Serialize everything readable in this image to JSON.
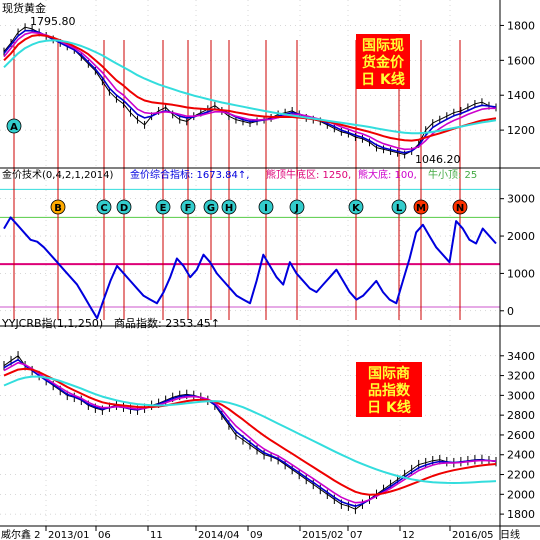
{
  "colors": {
    "background": "#ffffff",
    "axis": "#000000",
    "grid": "#b0b0b0",
    "candles": "#000000",
    "ma_short": "#0000cc",
    "ma_mid": "#cc00cc",
    "ma_long": "#ee0000",
    "ma_longest": "#33dddd",
    "index_line": "#0000dd",
    "level_top": "#33dddd",
    "level_mid": "#55cc44",
    "level_main": "#dd0077",
    "level_bottom": "#cc55cc",
    "event_line": "#cc0000",
    "badge_red": "#ff0000",
    "badge_yellow": "#ffff33",
    "marker_fill_cyan": "#33cccc",
    "marker_fill_orange": "#ffaa00",
    "marker_fill_red": "#ff3300"
  },
  "chart_data": [
    {
      "type": "line",
      "panel": "gold",
      "title": "现货黄金",
      "badge": [
        "国际现",
        "货金价",
        "日 K线"
      ],
      "annotations": {
        "high": "1795.80",
        "low": "1046.20"
      },
      "ylim": [
        1000,
        1900
      ],
      "y_ticks": [
        "1800",
        "1600",
        "1400",
        "1200"
      ],
      "y_tick_values": [
        1800,
        1600,
        1400,
        1200
      ],
      "markers": [
        "A"
      ],
      "series": [
        {
          "values": [
            1650,
            1700,
            1760,
            1790,
            1780,
            1760,
            1740,
            1720,
            1700,
            1680,
            1660,
            1620,
            1580,
            1540,
            1480,
            1420,
            1380,
            1350,
            1300,
            1260,
            1230,
            1280,
            1310,
            1330,
            1290,
            1260,
            1250,
            1280,
            1300,
            1320,
            1340,
            1310,
            1280,
            1260,
            1250,
            1240,
            1250,
            1260,
            1270,
            1290,
            1300,
            1310,
            1290,
            1270,
            1260,
            1250,
            1230,
            1210,
            1190,
            1180,
            1160,
            1150,
            1130,
            1100,
            1090,
            1080,
            1070,
            1060,
            1080,
            1120,
            1200,
            1240,
            1260,
            1280,
            1300,
            1310,
            1330,
            1350,
            1360,
            1340,
            1330
          ]
        },
        {
          "values": [
            1640,
            1690,
            1740,
            1770,
            1770,
            1760,
            1740,
            1720,
            1700,
            1680,
            1660,
            1630,
            1590,
            1550,
            1500,
            1440,
            1400,
            1370,
            1330,
            1290,
            1270,
            1280,
            1300,
            1310,
            1300,
            1280,
            1270,
            1275,
            1290,
            1305,
            1320,
            1315,
            1295,
            1275,
            1260,
            1250,
            1252,
            1258,
            1265,
            1280,
            1292,
            1300,
            1292,
            1278,
            1265,
            1255,
            1238,
            1220,
            1200,
            1186,
            1170,
            1158,
            1140,
            1115,
            1098,
            1088,
            1078,
            1070,
            1080,
            1110,
            1170,
            1215,
            1240,
            1262,
            1282,
            1295,
            1312,
            1330,
            1342,
            1338,
            1332
          ]
        },
        {
          "values": [
            1620,
            1670,
            1720,
            1750,
            1760,
            1755,
            1745,
            1730,
            1710,
            1690,
            1670,
            1645,
            1610,
            1570,
            1530,
            1480,
            1430,
            1400,
            1360,
            1320,
            1300,
            1295,
            1300,
            1305,
            1300,
            1290,
            1280,
            1280,
            1285,
            1295,
            1305,
            1305,
            1295,
            1280,
            1270,
            1260,
            1258,
            1260,
            1262,
            1272,
            1282,
            1290,
            1290,
            1282,
            1272,
            1262,
            1250,
            1235,
            1218,
            1205,
            1190,
            1178,
            1162,
            1140,
            1122,
            1110,
            1098,
            1090,
            1092,
            1105,
            1140,
            1180,
            1210,
            1235,
            1255,
            1272,
            1290,
            1305,
            1320,
            1325,
            1325
          ]
        },
        {
          "values": [
            1600,
            1640,
            1690,
            1720,
            1740,
            1745,
            1740,
            1730,
            1715,
            1700,
            1680,
            1660,
            1635,
            1600,
            1565,
            1525,
            1485,
            1455,
            1420,
            1390,
            1370,
            1360,
            1355,
            1350,
            1345,
            1338,
            1330,
            1325,
            1322,
            1320,
            1318,
            1315,
            1310,
            1302,
            1295,
            1288,
            1282,
            1278,
            1276,
            1275,
            1275,
            1275,
            1272,
            1268,
            1262,
            1255,
            1248,
            1240,
            1230,
            1220,
            1210,
            1200,
            1190,
            1178,
            1165,
            1155,
            1148,
            1142,
            1140,
            1145,
            1158,
            1170,
            1182,
            1195,
            1208,
            1220,
            1232,
            1244,
            1255,
            1262,
            1268
          ]
        },
        {
          "values": [
            1560,
            1600,
            1640,
            1670,
            1690,
            1705,
            1712,
            1715,
            1712,
            1705,
            1695,
            1682,
            1666,
            1648,
            1628,
            1605,
            1582,
            1560,
            1538,
            1515,
            1495,
            1478,
            1462,
            1448,
            1435,
            1422,
            1410,
            1398,
            1388,
            1378,
            1368,
            1358,
            1350,
            1342,
            1334,
            1326,
            1318,
            1310,
            1303,
            1296,
            1290,
            1284,
            1278,
            1272,
            1266,
            1260,
            1254,
            1248,
            1242,
            1236,
            1230,
            1224,
            1218,
            1210,
            1203,
            1196,
            1190,
            1185,
            1182,
            1182,
            1185,
            1190,
            1196,
            1204,
            1212,
            1220,
            1228,
            1236,
            1244,
            1250,
            1256
          ]
        }
      ]
    },
    {
      "type": "line",
      "panel": "gold_technical",
      "title": "金价技术(0,4,2,1,2014)",
      "legend": [
        {
          "label": "金价综合指标:",
          "value": "1673.84",
          "color": "#0000dd"
        },
        {
          "label": "熊顶牛底区:",
          "value": "1250",
          "color": "#dd0077"
        },
        {
          "label": "熊大底:",
          "value": "100",
          "color": "#cc00cc"
        },
        {
          "label": "牛小顶:",
          "value": "25",
          "color": "#44aa44"
        }
      ],
      "arrow": "↑",
      "ylim": [
        -300,
        3500
      ],
      "y_ticks": [
        "3000",
        "2000",
        "1000",
        "0"
      ],
      "y_tick_values": [
        3000,
        2000,
        1000,
        0
      ],
      "levels": [
        3250,
        2500,
        1250,
        100
      ],
      "markers": [
        "B",
        "C",
        "D",
        "E",
        "F",
        "G",
        "H",
        "I",
        "J",
        "K",
        "L",
        "M",
        "N"
      ],
      "series": [
        {
          "values": [
            2200,
            2500,
            2300,
            2100,
            1900,
            1850,
            1700,
            1500,
            1300,
            1100,
            900,
            700,
            400,
            100,
            -200,
            300,
            800,
            1200,
            1000,
            800,
            600,
            400,
            300,
            200,
            500,
            900,
            1400,
            1200,
            900,
            1100,
            1500,
            1300,
            1000,
            800,
            600,
            400,
            300,
            200,
            800,
            1500,
            1200,
            900,
            700,
            1300,
            1000,
            800,
            600,
            500,
            700,
            900,
            1100,
            800,
            500,
            300,
            400,
            600,
            800,
            500,
            300,
            200,
            800,
            1400,
            2100,
            2300,
            2000,
            1700,
            1500,
            1300,
            2400,
            2200,
            1900,
            1800,
            2200,
            2000,
            1800
          ]
        }
      ]
    },
    {
      "type": "line",
      "panel": "commodity",
      "title": "YYJCRB指(1,1,250)",
      "legend": [
        {
          "label": "商品指数:",
          "value": "2353.45",
          "color": "#000000"
        }
      ],
      "arrow": "↑",
      "badge": [
        "国际商",
        "品指数",
        "日 K线"
      ],
      "ylim": [
        1700,
        3600
      ],
      "y_ticks": [
        "3400",
        "3200",
        "3000",
        "2800",
        "2600",
        "2400",
        "2200",
        "2000",
        "1800"
      ],
      "y_tick_values": [
        3400,
        3200,
        3000,
        2800,
        2600,
        2400,
        2200,
        2000,
        1800
      ],
      "x_ticks": [
        "威尔鑫 2",
        "2013/01",
        "06",
        "11",
        "2014/04",
        "09",
        "2015/02",
        "07",
        "12",
        "2016/05",
        "日线"
      ],
      "series": [
        {
          "values": [
            3300,
            3350,
            3400,
            3300,
            3250,
            3200,
            3150,
            3100,
            3050,
            3000,
            2980,
            2950,
            2900,
            2870,
            2850,
            2880,
            2900,
            2880,
            2860,
            2850,
            2870,
            2900,
            2920,
            2950,
            2980,
            3000,
            3010,
            3000,
            2980,
            2950,
            2900,
            2800,
            2700,
            2600,
            2550,
            2500,
            2450,
            2400,
            2380,
            2350,
            2300,
            2250,
            2200,
            2150,
            2100,
            2050,
            2000,
            1950,
            1900,
            1880,
            1850,
            1900,
            1950,
            2000,
            2050,
            2100,
            2150,
            2200,
            2250,
            2300,
            2320,
            2340,
            2350,
            2330,
            2320,
            2330,
            2340,
            2350,
            2353,
            2340,
            2330
          ]
        },
        {
          "values": [
            3280,
            3320,
            3360,
            3300,
            3250,
            3200,
            3150,
            3110,
            3060,
            3010,
            2985,
            2955,
            2910,
            2880,
            2860,
            2875,
            2890,
            2878,
            2862,
            2855,
            2868,
            2892,
            2912,
            2940,
            2968,
            2990,
            3000,
            2995,
            2978,
            2952,
            2905,
            2820,
            2725,
            2635,
            2580,
            2525,
            2470,
            2420,
            2390,
            2360,
            2315,
            2265,
            2218,
            2168,
            2120,
            2070,
            2020,
            1970,
            1925,
            1900,
            1880,
            1905,
            1945,
            1990,
            2035,
            2080,
            2128,
            2175,
            2222,
            2268,
            2295,
            2318,
            2332,
            2328,
            2322,
            2328,
            2336,
            2344,
            2348,
            2342,
            2335
          ]
        },
        {
          "values": [
            3250,
            3290,
            3330,
            3310,
            3270,
            3220,
            3170,
            3125,
            3080,
            3035,
            3000,
            2970,
            2930,
            2898,
            2875,
            2878,
            2885,
            2880,
            2870,
            2862,
            2868,
            2885,
            2902,
            2925,
            2950,
            2972,
            2985,
            2988,
            2980,
            2962,
            2925,
            2855,
            2770,
            2690,
            2630,
            2570,
            2510,
            2458,
            2420,
            2388,
            2345,
            2298,
            2252,
            2205,
            2158,
            2110,
            2062,
            2014,
            1970,
            1940,
            1915,
            1920,
            1945,
            1980,
            2020,
            2060,
            2105,
            2150,
            2195,
            2240,
            2270,
            2295,
            2312,
            2318,
            2318,
            2322,
            2330,
            2338,
            2342,
            2340,
            2336
          ]
        },
        {
          "values": [
            3200,
            3230,
            3260,
            3270,
            3260,
            3235,
            3200,
            3165,
            3125,
            3085,
            3050,
            3018,
            2985,
            2955,
            2930,
            2915,
            2905,
            2898,
            2890,
            2882,
            2880,
            2882,
            2888,
            2898,
            2912,
            2928,
            2942,
            2952,
            2955,
            2950,
            2935,
            2905,
            2860,
            2808,
            2755,
            2700,
            2645,
            2592,
            2545,
            2500,
            2455,
            2410,
            2365,
            2320,
            2275,
            2230,
            2185,
            2140,
            2098,
            2060,
            2025,
            2005,
            1995,
            1998,
            2010,
            2028,
            2050,
            2075,
            2102,
            2130,
            2158,
            2185,
            2208,
            2228,
            2244,
            2258,
            2270,
            2282,
            2292,
            2300,
            2306
          ]
        },
        {
          "values": [
            3100,
            3130,
            3160,
            3180,
            3190,
            3190,
            3180,
            3165,
            3145,
            3120,
            3095,
            3068,
            3040,
            3012,
            2988,
            2968,
            2950,
            2935,
            2922,
            2912,
            2905,
            2900,
            2898,
            2900,
            2905,
            2912,
            2920,
            2928,
            2935,
            2940,
            2942,
            2938,
            2925,
            2905,
            2880,
            2850,
            2818,
            2785,
            2750,
            2715,
            2680,
            2645,
            2610,
            2575,
            2540,
            2505,
            2470,
            2435,
            2400,
            2368,
            2335,
            2305,
            2278,
            2252,
            2228,
            2205,
            2185,
            2168,
            2152,
            2140,
            2130,
            2122,
            2118,
            2115,
            2114,
            2115,
            2118,
            2122,
            2126,
            2130,
            2134
          ]
        }
      ]
    }
  ]
}
